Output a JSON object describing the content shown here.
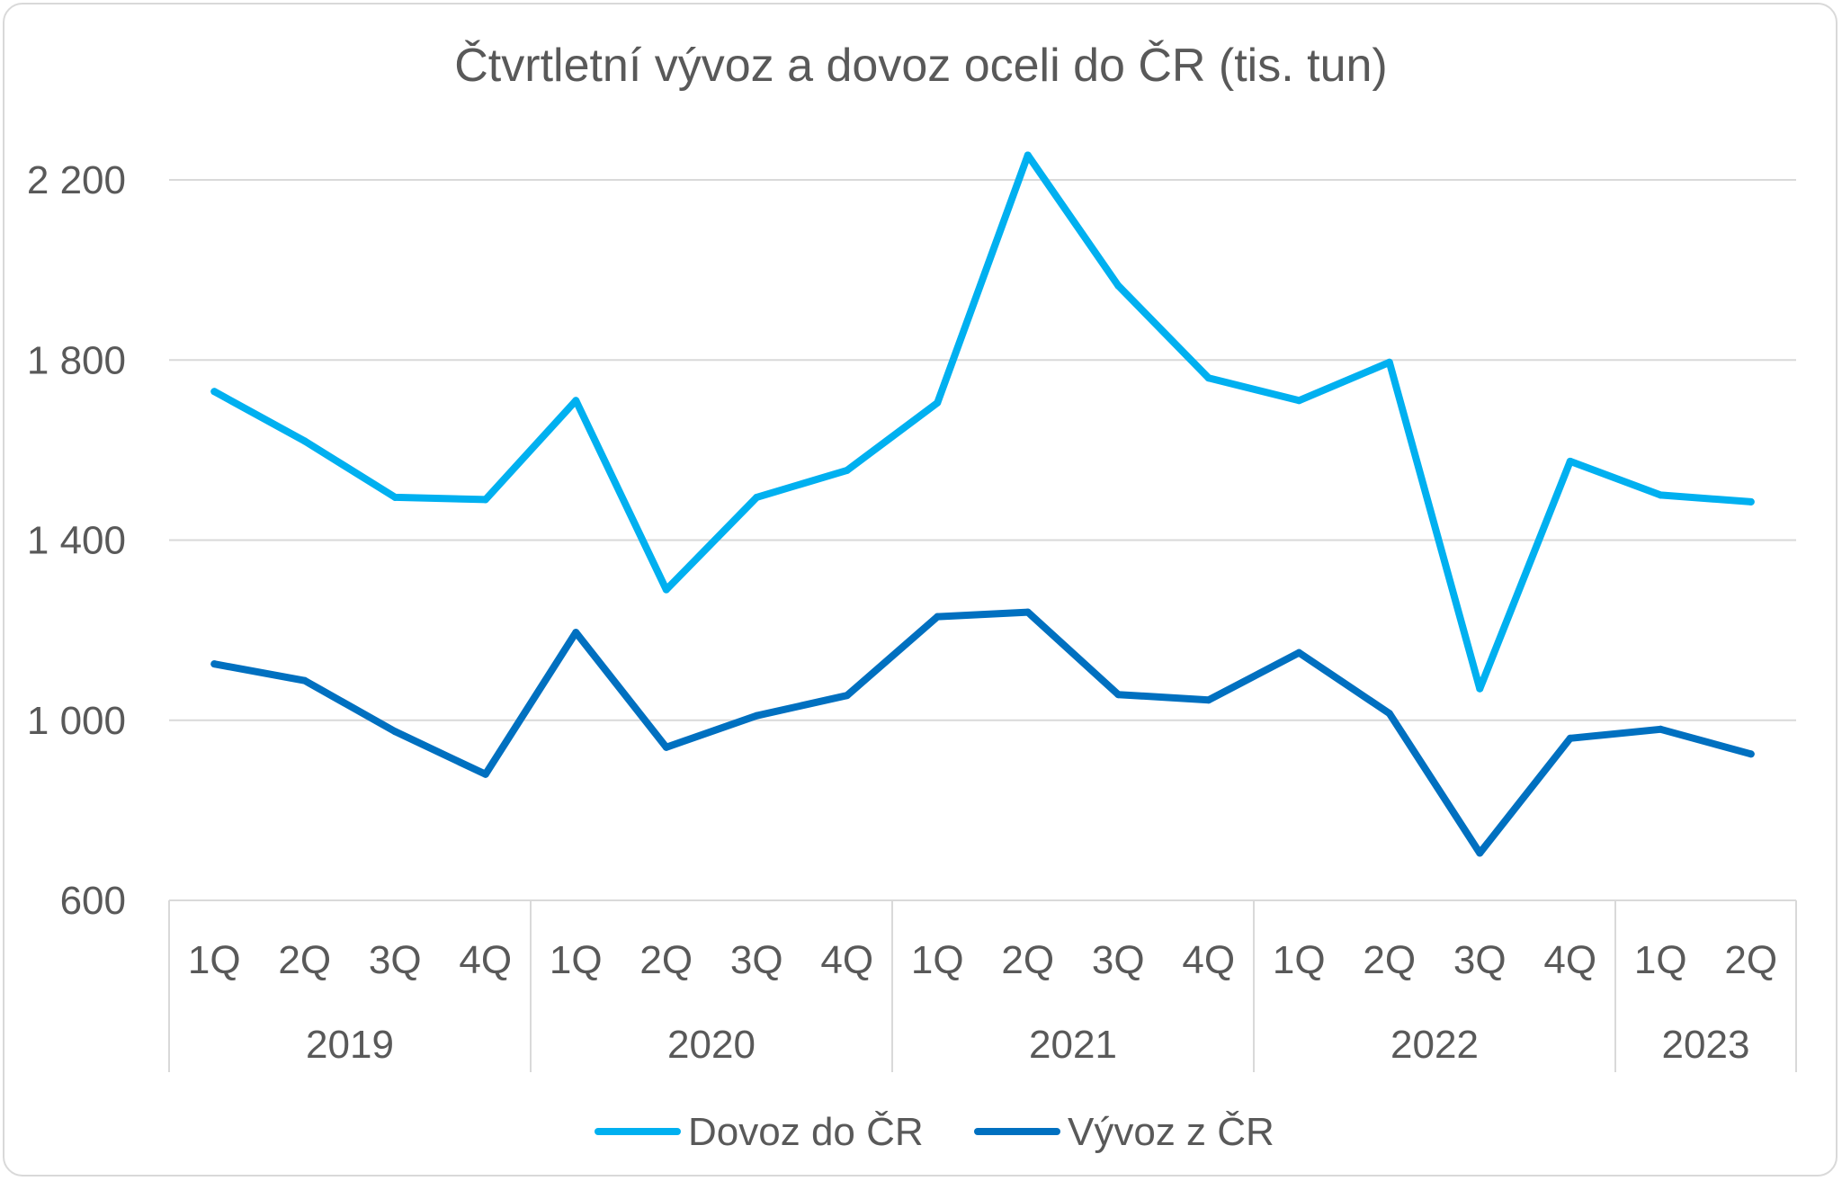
{
  "chart_data": {
    "type": "line",
    "title": "Čtvrtletní vývoz a dovoz oceli do ČR (tis. tun)",
    "xlabel": "",
    "ylabel": "",
    "ylim": [
      600,
      2200
    ],
    "y_ticks": [
      600,
      1000,
      1400,
      1800,
      2200
    ],
    "y_tick_labels": [
      "600",
      "1 000",
      "1 400",
      "1 800",
      "2 200"
    ],
    "grid": true,
    "legend_position": "bottom",
    "categories": [
      "1Q",
      "2Q",
      "3Q",
      "4Q",
      "1Q",
      "2Q",
      "3Q",
      "4Q",
      "1Q",
      "2Q",
      "3Q",
      "4Q",
      "1Q",
      "2Q",
      "3Q",
      "4Q",
      "1Q",
      "2Q"
    ],
    "year_groups": [
      {
        "label": "2019",
        "count": 4
      },
      {
        "label": "2020",
        "count": 4
      },
      {
        "label": "2021",
        "count": 4
      },
      {
        "label": "2022",
        "count": 4
      },
      {
        "label": "2023",
        "count": 2
      }
    ],
    "series": [
      {
        "name": "Dovoz do ČR",
        "color": "#00b0f0",
        "values": [
          1730,
          1620,
          1495,
          1490,
          1710,
          1290,
          1495,
          1555,
          1705,
          2255,
          1965,
          1760,
          1710,
          1795,
          1070,
          1575,
          1500,
          1485
        ]
      },
      {
        "name": "Vývoz z ČR",
        "color": "#0070c0",
        "values": [
          1125,
          1088,
          975,
          880,
          1195,
          940,
          1010,
          1055,
          1230,
          1240,
          1057,
          1045,
          1150,
          1015,
          705,
          960,
          980,
          925
        ]
      }
    ]
  }
}
